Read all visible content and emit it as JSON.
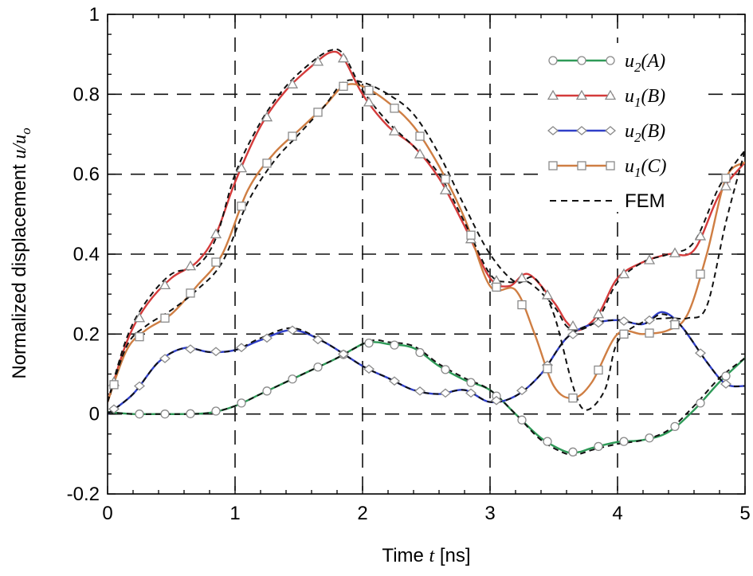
{
  "chart_data": {
    "type": "line",
    "title": "",
    "xlabel": {
      "prefix": "Time ",
      "var": "t",
      "suffix": " [ns]"
    },
    "ylabel": {
      "prefix": "Normalized displacement ",
      "var": "u/u",
      "sub": "o"
    },
    "xlim": [
      0,
      5
    ],
    "ylim": [
      -0.2,
      1.0
    ],
    "xticks": [
      0,
      1,
      2,
      3,
      4,
      5
    ],
    "yticks": [
      -0.2,
      0,
      0.2,
      0.4,
      0.6,
      0.8,
      1.0
    ],
    "xtick_labels": [
      "0",
      "1",
      "2",
      "3",
      "4",
      "5"
    ],
    "ytick_labels": [
      "-0.2",
      "0",
      "0.2",
      "0.4",
      "0.6",
      "0.8",
      "1"
    ],
    "grid": "dashed",
    "legend_position": "top-right",
    "series": [
      {
        "name": "u2(A)",
        "label_base": "u",
        "label_sub": "2",
        "label_arg": "(A)",
        "color": "#2e9a57",
        "marker": "circle",
        "x": [
          0,
          0.2,
          0.4,
          0.6,
          0.8,
          1.0,
          1.2,
          1.4,
          1.6,
          1.8,
          2.0,
          2.1,
          2.2,
          2.4,
          2.6,
          2.8,
          3.0,
          3.2,
          3.4,
          3.6,
          3.7,
          3.8,
          4.0,
          4.2,
          4.4,
          4.6,
          4.8,
          5.0
        ],
        "y": [
          0.005,
          0.0,
          0.0,
          0.0,
          0.003,
          0.02,
          0.05,
          0.08,
          0.11,
          0.14,
          0.175,
          0.18,
          0.175,
          0.165,
          0.12,
          0.085,
          0.06,
          0.0,
          -0.06,
          -0.095,
          -0.095,
          -0.085,
          -0.07,
          -0.065,
          -0.045,
          0.01,
          0.08,
          0.14
        ],
        "marker_x": [
          0.25,
          0.45,
          0.65,
          0.85,
          1.05,
          1.25,
          1.45,
          1.65,
          1.85,
          2.05,
          2.25,
          2.45,
          2.65,
          2.85,
          3.05,
          3.25,
          3.45,
          3.65,
          3.85,
          4.05,
          4.25,
          4.45,
          4.65,
          4.85
        ]
      },
      {
        "name": "u1(B)",
        "label_base": "u",
        "label_sub": "1",
        "label_arg": "(B)",
        "color": "#d43b3b",
        "marker": "triangle",
        "x": [
          0,
          0.15,
          0.3,
          0.5,
          0.7,
          0.85,
          1.0,
          1.2,
          1.4,
          1.6,
          1.75,
          1.85,
          2.0,
          2.2,
          2.4,
          2.6,
          2.8,
          3.0,
          3.15,
          3.3,
          3.5,
          3.6,
          3.7,
          3.85,
          4.0,
          4.2,
          4.4,
          4.6,
          4.8,
          5.0
        ],
        "y": [
          0.03,
          0.18,
          0.27,
          0.34,
          0.38,
          0.45,
          0.58,
          0.72,
          0.81,
          0.87,
          0.905,
          0.89,
          0.8,
          0.72,
          0.67,
          0.59,
          0.47,
          0.34,
          0.32,
          0.35,
          0.28,
          0.23,
          0.21,
          0.25,
          0.34,
          0.38,
          0.4,
          0.41,
          0.55,
          0.63
        ],
        "marker_x": [
          0.05,
          0.25,
          0.45,
          0.65,
          0.85,
          1.05,
          1.25,
          1.45,
          1.65,
          1.85,
          2.05,
          2.25,
          2.45,
          2.65,
          2.85,
          3.05,
          3.25,
          3.45,
          3.65,
          3.85,
          4.05,
          4.25,
          4.45,
          4.65,
          4.85
        ]
      },
      {
        "name": "u2(B)",
        "label_base": "u",
        "label_sub": "2",
        "label_arg": "(B)",
        "color": "#2f3fc8",
        "marker": "diamond",
        "x": [
          0,
          0.2,
          0.4,
          0.6,
          0.8,
          1.0,
          1.2,
          1.45,
          1.7,
          2.0,
          2.2,
          2.4,
          2.6,
          2.8,
          3.0,
          3.2,
          3.4,
          3.6,
          3.8,
          4.0,
          4.2,
          4.35,
          4.5,
          4.7,
          4.85,
          5.0
        ],
        "y": [
          0.0,
          0.05,
          0.13,
          0.165,
          0.155,
          0.16,
          0.185,
          0.21,
          0.18,
          0.12,
          0.09,
          0.06,
          0.05,
          0.06,
          0.03,
          0.045,
          0.1,
          0.19,
          0.225,
          0.235,
          0.225,
          0.255,
          0.22,
          0.13,
          0.075,
          0.07
        ],
        "marker_x": [
          0.05,
          0.25,
          0.45,
          0.65,
          0.85,
          1.05,
          1.25,
          1.45,
          1.65,
          1.85,
          2.05,
          2.25,
          2.45,
          2.65,
          2.85,
          3.05,
          3.25,
          3.45,
          3.65,
          3.85,
          4.05,
          4.25,
          4.45,
          4.65,
          4.85
        ]
      },
      {
        "name": "u1(C)",
        "label_base": "u",
        "label_sub": "1",
        "label_arg": "(C)",
        "color": "#cf7e43",
        "marker": "square",
        "x": [
          0,
          0.15,
          0.3,
          0.5,
          0.7,
          0.9,
          1.1,
          1.3,
          1.5,
          1.7,
          1.85,
          2.0,
          2.2,
          2.4,
          2.6,
          2.8,
          3.0,
          3.2,
          3.35,
          3.5,
          3.65,
          3.8,
          4.0,
          4.2,
          4.4,
          4.55,
          4.7,
          4.85,
          5.0
        ],
        "y": [
          0.03,
          0.16,
          0.21,
          0.25,
          0.32,
          0.4,
          0.56,
          0.65,
          0.71,
          0.77,
          0.82,
          0.82,
          0.78,
          0.72,
          0.62,
          0.49,
          0.32,
          0.31,
          0.2,
          0.07,
          0.04,
          0.08,
          0.2,
          0.2,
          0.21,
          0.25,
          0.4,
          0.59,
          0.63
        ],
        "marker_x": [
          0.05,
          0.25,
          0.45,
          0.65,
          0.85,
          1.05,
          1.25,
          1.45,
          1.65,
          1.85,
          2.05,
          2.25,
          2.45,
          2.65,
          2.85,
          3.05,
          3.25,
          3.45,
          3.65,
          3.85,
          4.05,
          4.25,
          4.45,
          4.65,
          4.85
        ]
      },
      {
        "name": "FEM",
        "label_base": "FEM",
        "label_sub": "",
        "label_arg": "",
        "color": "#111111",
        "marker": "none",
        "dashed": true,
        "curves": [
          {
            "x": [
              0,
              0.2,
              0.4,
              0.6,
              0.8,
              1.0,
              1.2,
              1.4,
              1.6,
              1.8,
              2.0,
              2.1,
              2.2,
              2.4,
              2.6,
              2.8,
              3.0,
              3.2,
              3.4,
              3.6,
              3.7,
              3.8,
              4.0,
              4.2,
              4.4,
              4.6,
              4.8,
              5.0
            ],
            "y": [
              0.005,
              0.0,
              0.0,
              0.0,
              0.003,
              0.02,
              0.05,
              0.08,
              0.11,
              0.14,
              0.175,
              0.185,
              0.18,
              0.17,
              0.125,
              0.09,
              0.06,
              0.0,
              -0.065,
              -0.1,
              -0.1,
              -0.09,
              -0.075,
              -0.065,
              -0.04,
              0.02,
              0.09,
              0.14
            ]
          },
          {
            "x": [
              0,
              0.15,
              0.3,
              0.5,
              0.7,
              0.85,
              1.0,
              1.2,
              1.4,
              1.6,
              1.75,
              1.85,
              2.0,
              2.2,
              2.4,
              2.6,
              2.8,
              3.0,
              3.15,
              3.3,
              3.5,
              3.6,
              3.7,
              3.85,
              4.0,
              4.2,
              4.4,
              4.6,
              4.8,
              5.0
            ],
            "y": [
              0.03,
              0.19,
              0.28,
              0.35,
              0.37,
              0.44,
              0.6,
              0.73,
              0.82,
              0.88,
              0.91,
              0.9,
              0.81,
              0.73,
              0.67,
              0.6,
              0.48,
              0.35,
              0.33,
              0.33,
              0.27,
              0.22,
              0.21,
              0.24,
              0.33,
              0.38,
              0.4,
              0.43,
              0.57,
              0.66
            ]
          },
          {
            "x": [
              0,
              0.2,
              0.4,
              0.6,
              0.8,
              1.0,
              1.2,
              1.45,
              1.7,
              2.0,
              2.2,
              2.4,
              2.6,
              2.8,
              3.0,
              3.2,
              3.4,
              3.6,
              3.8,
              4.0,
              4.2,
              4.35,
              4.5,
              4.7,
              4.85,
              5.0
            ],
            "y": [
              0.0,
              0.05,
              0.13,
              0.165,
              0.155,
              0.16,
              0.19,
              0.215,
              0.18,
              0.12,
              0.09,
              0.06,
              0.05,
              0.06,
              0.03,
              0.045,
              0.1,
              0.19,
              0.225,
              0.235,
              0.225,
              0.25,
              0.22,
              0.13,
              0.075,
              0.07
            ]
          },
          {
            "x": [
              0,
              0.15,
              0.3,
              0.5,
              0.7,
              0.9,
              1.1,
              1.3,
              1.5,
              1.7,
              1.85,
              2.0,
              2.2,
              2.4,
              2.6,
              2.8,
              3.0,
              3.2,
              3.35,
              3.5,
              3.65,
              3.75,
              3.9,
              4.0,
              4.2,
              4.4,
              4.55,
              4.7,
              4.85,
              5.0
            ],
            "y": [
              0.03,
              0.17,
              0.22,
              0.26,
              0.31,
              0.38,
              0.53,
              0.63,
              0.7,
              0.77,
              0.83,
              0.83,
              0.8,
              0.75,
              0.65,
              0.52,
              0.4,
              0.33,
              0.34,
              0.25,
              0.07,
              0.01,
              0.06,
              0.18,
              0.23,
              0.24,
              0.24,
              0.27,
              0.48,
              0.66
            ]
          }
        ]
      }
    ]
  }
}
